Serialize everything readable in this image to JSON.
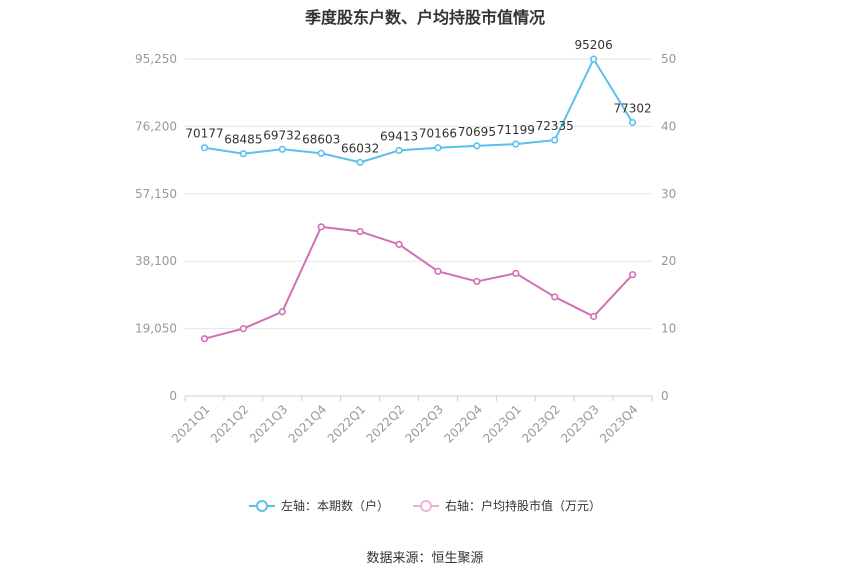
{
  "chart_data": {
    "type": "line",
    "title": "季度股东户数、户均持股市值情况",
    "categories": [
      "2021Q1",
      "2021Q2",
      "2021Q3",
      "2021Q4",
      "2022Q1",
      "2022Q2",
      "2022Q3",
      "2022Q4",
      "2023Q1",
      "2023Q2",
      "2023Q3",
      "2023Q4"
    ],
    "y_left": {
      "min": 0,
      "max": 95250,
      "ticks": [
        0,
        19050,
        38100,
        57150,
        76200,
        95250
      ],
      "tick_labels": [
        "0",
        "19,050",
        "38,100",
        "57,150",
        "76,200",
        "95,250"
      ]
    },
    "y_right": {
      "min": 0,
      "max": 50,
      "ticks": [
        0,
        10,
        20,
        30,
        40,
        50
      ],
      "tick_labels": [
        "0",
        "10",
        "20",
        "30",
        "40",
        "50"
      ]
    },
    "series": [
      {
        "name": "左轴：本期数（户）",
        "axis": "left",
        "color": "#5bc0eb",
        "values": [
          70177,
          68485,
          69732,
          68603,
          66032,
          69413,
          70166,
          70695,
          71199,
          72335,
          95206,
          77302
        ],
        "labels": [
          "70177",
          "68485",
          "69732",
          "68603",
          "66032",
          "69413",
          "70166",
          "70695",
          "71199",
          "72335",
          "95206",
          "77302"
        ]
      },
      {
        "name": "右轴：户均持股市值（万元）",
        "axis": "right",
        "color": "#d16fb4",
        "values": [
          8.5,
          10.0,
          12.5,
          25.1,
          24.4,
          22.5,
          18.5,
          17.0,
          18.2,
          14.7,
          11.8,
          18.0
        ]
      }
    ],
    "grid": true,
    "legend_position": "bottom"
  },
  "source": "数据来源：恒生聚源"
}
